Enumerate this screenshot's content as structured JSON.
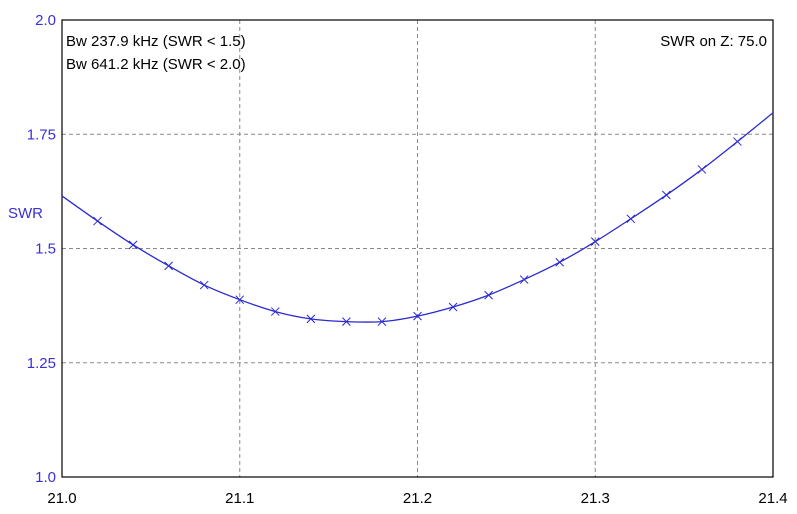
{
  "chart_data": {
    "type": "line",
    "title": "",
    "xlabel": "",
    "ylabel": "SWR",
    "xlim": [
      21.0,
      21.4
    ],
    "ylim": [
      1.0,
      2.0
    ],
    "x_ticks": [
      "21.0",
      "21.1",
      "21.2",
      "21.3",
      "21.4"
    ],
    "y_ticks": [
      "1.0",
      "1.25",
      "1.5",
      "1.75",
      "2.0"
    ],
    "grid": true,
    "annotations": {
      "bw1": "Bw 237.9 kHz (SWR < 1.5)",
      "bw2": "Bw 641.2 kHz (SWR < 2.0)",
      "z": "SWR on Z: 75.0"
    },
    "colors": {
      "line": "#2a2ad0",
      "ytick": "#3b2fd6",
      "grid": "#8a8a8a"
    },
    "series": [
      {
        "x": [
          21.0,
          21.02,
          21.04,
          21.06,
          21.08,
          21.1,
          21.12,
          21.14,
          21.16,
          21.18,
          21.2,
          21.22,
          21.24,
          21.26,
          21.28,
          21.3,
          21.32,
          21.34,
          21.36,
          21.38,
          21.4
        ],
        "values": [
          1.615,
          1.56,
          1.508,
          1.462,
          1.42,
          1.388,
          1.362,
          1.346,
          1.34,
          1.34,
          1.352,
          1.372,
          1.398,
          1.432,
          1.47,
          1.515,
          1.565,
          1.617,
          1.673,
          1.734,
          1.797
        ]
      }
    ]
  }
}
